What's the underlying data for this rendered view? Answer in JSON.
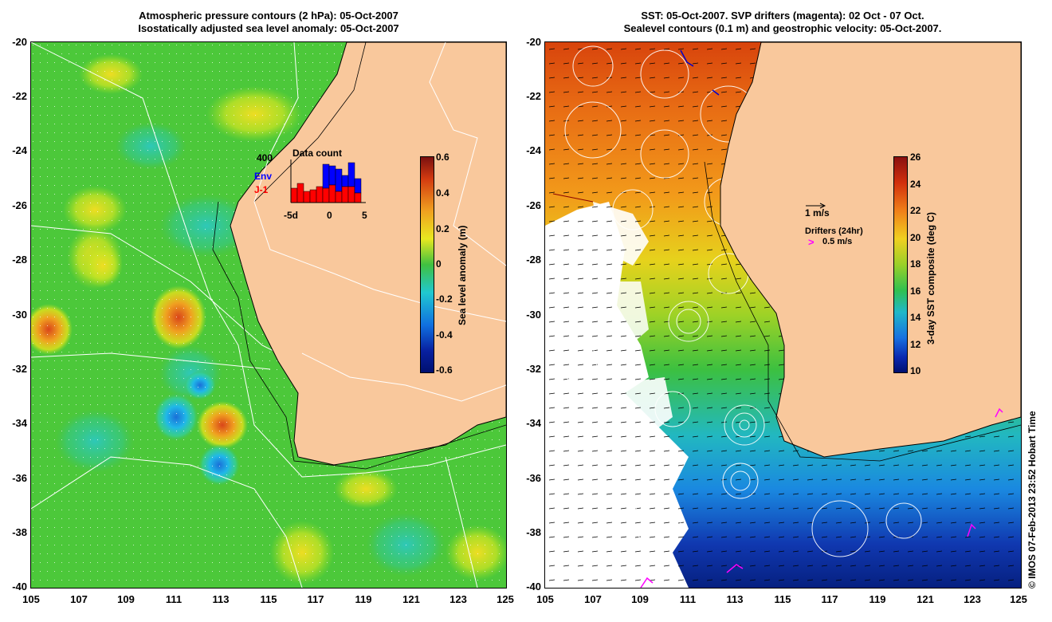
{
  "left_panel": {
    "title_line1": "Atmospheric pressure contours (2 hPa): 05-Oct-2007",
    "title_line2": "Isostatically adjusted sea level anomaly: 05-Oct-2007",
    "colorbar_label": "Sea level anomaly (m)",
    "colorbar_ticks": [
      "0.6",
      "0.4",
      "0.2",
      "0",
      "-0.2",
      "-0.4",
      "-0.6"
    ],
    "inset": {
      "count_label": "400",
      "title": "Data count",
      "env_label": "Env",
      "j1_label": "J-1",
      "x_ticks": [
        "-5d",
        "0",
        "5"
      ],
      "env_color": "#0000ff",
      "j1_color": "#ff0000"
    }
  },
  "right_panel": {
    "title_line1": "SST: 05-Oct-2007. SVP drifters (magenta): 02 Oct - 07 Oct.",
    "title_line2": "Sealevel contours (0.1 m) and geostrophic velocity: 05-Oct-2007.",
    "colorbar_label": "3-day SST composite (deg C)",
    "colorbar_ticks": [
      "26",
      "24",
      "22",
      "20",
      "18",
      "16",
      "14",
      "12",
      "10"
    ],
    "velocity_scale_label": "1 m/s",
    "drifters_label": "Drifters (24hr)",
    "drifters_scale_label": "0.5 m/s"
  },
  "axes": {
    "lat_ticks": [
      "-20",
      "-22",
      "-24",
      "-26",
      "-28",
      "-30",
      "-32",
      "-34",
      "-36",
      "-38",
      "-40"
    ],
    "lon_ticks": [
      "105",
      "107",
      "109",
      "111",
      "113",
      "115",
      "117",
      "119",
      "121",
      "123",
      "125"
    ]
  },
  "credit": "© IMOS 07-Feb-2013 23:52 Hobart Time",
  "colors": {
    "land": "#f9c89c",
    "drifter": "#ff00ff"
  }
}
